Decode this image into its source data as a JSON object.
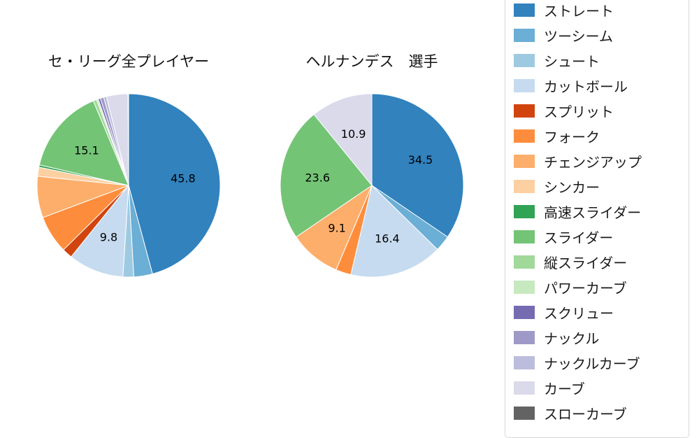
{
  "chart_data": [
    {
      "type": "pie",
      "title": "セ・リーグ全プレイヤー",
      "direction": "clockwise",
      "start_angle": "top",
      "value_unit": "percent",
      "slices": [
        {
          "id": "straight",
          "name": "ストレート",
          "value": 45.8
        },
        {
          "id": "two-seam",
          "name": "ツーシーム",
          "value": 3.3
        },
        {
          "id": "shuuto",
          "name": "シュート",
          "value": 1.9
        },
        {
          "id": "cutball",
          "name": "カットボール",
          "value": 9.8
        },
        {
          "id": "split",
          "name": "スプリット",
          "value": 1.8
        },
        {
          "id": "fork",
          "name": "フォーク",
          "value": 6.7
        },
        {
          "id": "changeup",
          "name": "チェンジアップ",
          "value": 7.3
        },
        {
          "id": "sinker",
          "name": "シンカー",
          "value": 1.6
        },
        {
          "id": "fast-slider",
          "name": "高速スライダー",
          "value": 0.4
        },
        {
          "id": "slider",
          "name": "スライダー",
          "value": 15.1
        },
        {
          "id": "vertical-slider",
          "name": "縦スライダー",
          "value": 0.6
        },
        {
          "id": "power-curve",
          "name": "パワーカーブ",
          "value": 0.3
        },
        {
          "id": "screw",
          "name": "スクリュー",
          "value": 0.4
        },
        {
          "id": "knuckle",
          "name": "ナックル",
          "value": 0.6
        },
        {
          "id": "knuckle-curve",
          "name": "ナックルカーブ",
          "value": 0.5
        },
        {
          "id": "curve",
          "name": "カーブ",
          "value": 3.8
        },
        {
          "id": "slow-curve",
          "name": "スローカーブ",
          "value": 0.1
        }
      ],
      "visible_labels": [
        "45.8",
        "9.8",
        "15.1"
      ]
    },
    {
      "type": "pie",
      "title": "ヘルナンデス　選手",
      "direction": "clockwise",
      "start_angle": "top",
      "value_unit": "percent",
      "slices": [
        {
          "id": "straight",
          "name": "ストレート",
          "value": 34.5
        },
        {
          "id": "two-seam",
          "name": "ツーシーム",
          "value": 2.8
        },
        {
          "id": "cutball",
          "name": "カットボール",
          "value": 16.4
        },
        {
          "id": "fork",
          "name": "フォーク",
          "value": 2.7
        },
        {
          "id": "changeup",
          "name": "チェンジアップ",
          "value": 9.1
        },
        {
          "id": "slider",
          "name": "スライダー",
          "value": 23.6
        },
        {
          "id": "curve",
          "name": "カーブ",
          "value": 10.9
        }
      ],
      "visible_labels": [
        "34.5",
        "16.4",
        "9.1",
        "23.6",
        "10.9"
      ]
    }
  ],
  "legend": {
    "items": [
      {
        "id": "straight",
        "label": "ストレート",
        "color": "#3182bd"
      },
      {
        "id": "two-seam",
        "label": "ツーシーム",
        "color": "#6baed6"
      },
      {
        "id": "shuuto",
        "label": "シュート",
        "color": "#9ecae1"
      },
      {
        "id": "cutball",
        "label": "カットボール",
        "color": "#c6dbef"
      },
      {
        "id": "split",
        "label": "スプリット",
        "color": "#d1440e"
      },
      {
        "id": "fork",
        "label": "フォーク",
        "color": "#fd8d3c"
      },
      {
        "id": "changeup",
        "label": "チェンジアップ",
        "color": "#fdae6b"
      },
      {
        "id": "sinker",
        "label": "シンカー",
        "color": "#fdd0a2"
      },
      {
        "id": "fast-slider",
        "label": "高速スライダー",
        "color": "#31a354"
      },
      {
        "id": "slider",
        "label": "スライダー",
        "color": "#74c476"
      },
      {
        "id": "vertical-slider",
        "label": "縦スライダー",
        "color": "#a1d99b"
      },
      {
        "id": "power-curve",
        "label": "パワーカーブ",
        "color": "#c7e9c0"
      },
      {
        "id": "screw",
        "label": "スクリュー",
        "color": "#756bb1"
      },
      {
        "id": "knuckle",
        "label": "ナックル",
        "color": "#9e9ac8"
      },
      {
        "id": "knuckle-curve",
        "label": "ナックルカーブ",
        "color": "#bcbddc"
      },
      {
        "id": "curve",
        "label": "カーブ",
        "color": "#dadaeb"
      },
      {
        "id": "slow-curve",
        "label": "スローカーブ",
        "color": "#636363"
      }
    ]
  }
}
